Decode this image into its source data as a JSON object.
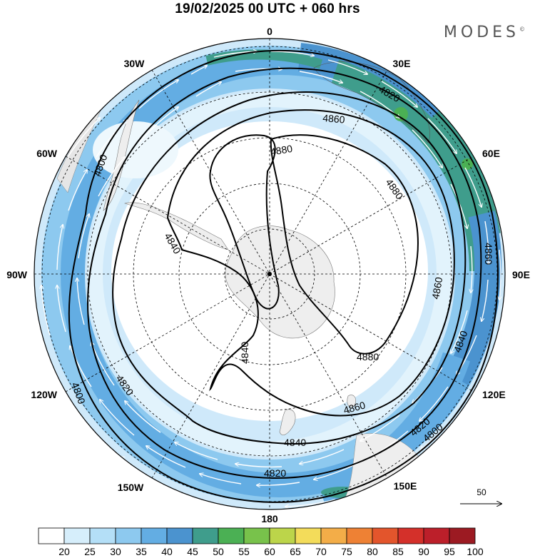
{
  "title": "19/02/2025  00 UTC  + 060 hrs",
  "brand": "MODES",
  "brand_mark": "©",
  "longitude_labels": [
    "0",
    "30E",
    "60E",
    "90E",
    "120E",
    "150E",
    "180",
    "150W",
    "120W",
    "90W",
    "60W",
    "30W"
  ],
  "contour_labels": [
    "4800",
    "4820",
    "4840",
    "4860",
    "4880",
    "4880",
    "4860",
    "4840",
    "4820",
    "4800",
    "4820",
    "4840",
    "4860",
    "4880",
    "4860",
    "4840",
    "4820",
    "4800"
  ],
  "wind_reference": "50",
  "colorbar": {
    "labels": [
      "20",
      "25",
      "30",
      "35",
      "40",
      "45",
      "50",
      "55",
      "60",
      "65",
      "70",
      "75",
      "80",
      "85",
      "90",
      "95",
      "100"
    ],
    "colors": [
      "#ffffff",
      "#d6eefb",
      "#b4dff7",
      "#8dc9ef",
      "#63ade3",
      "#4b93cf",
      "#3f9d8c",
      "#4bb054",
      "#78c24b",
      "#bcd54a",
      "#f3dc5a",
      "#f3ad48",
      "#ee8134",
      "#e3552c",
      "#d4302a",
      "#bc1f2a",
      "#9c1a22"
    ]
  },
  "colors": {
    "land": "#eeeeee",
    "contour": "#000000",
    "wind_arrows": "#ffffff"
  }
}
